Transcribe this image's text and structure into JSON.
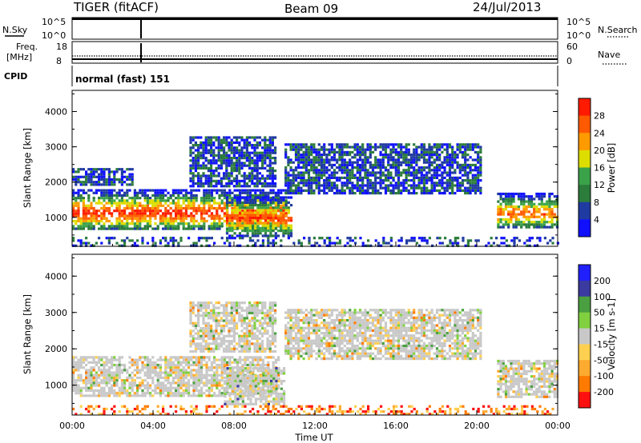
{
  "header": {
    "radar": "TIGER (fitACF)",
    "beam": "Beam 09",
    "date": "24/Jul/2013"
  },
  "noise_panel": {
    "left_label": "N.Sky",
    "right_label": "N.Search",
    "left_ticks": [
      "10^5",
      "10^0"
    ],
    "right_ticks": [
      "10^5",
      "10^0"
    ]
  },
  "freq_panel": {
    "left_label_line1": "Freq.",
    "left_label_line2": "[MHz]",
    "right_label": "Nave",
    "left_ticks": [
      "18",
      "8"
    ],
    "right_ticks": [
      "60",
      "0"
    ]
  },
  "cpid_panel": {
    "label": "CPID",
    "value": "normal (fast) 151"
  },
  "x_axis": {
    "title": "Time UT",
    "ticks": [
      "00:00",
      "04:00",
      "08:00",
      "12:00",
      "16:00",
      "20:00",
      "00:00"
    ]
  },
  "colors": {
    "power_scale": [
      "#1010ff",
      "#1f3aa0",
      "#2c7c3c",
      "#3aa34a",
      "#dddd00",
      "#ff9a00",
      "#ff5a00",
      "#ff1a00"
    ],
    "velocity_scale": [
      "#ff1010",
      "#ff7a00",
      "#ffaa30",
      "#ffd050",
      "#c8c8c8",
      "#80d040",
      "#4aa040",
      "#3a3aa0",
      "#2020ff"
    ],
    "ground_scatter": "#c8c8c8"
  },
  "chart_data": [
    {
      "type": "heatmap",
      "panel": "power",
      "ylabel": "Slant Range [km]",
      "yticks": [
        "1000",
        "2000",
        "3000",
        "4000"
      ],
      "ylim": [
        180,
        4600
      ],
      "xlim_hours": [
        0,
        24
      ],
      "colorbar": {
        "label": "Power [dB]",
        "ticks": [
          "4",
          "8",
          "12",
          "16",
          "20",
          "24",
          "28"
        ]
      },
      "echo_regions": [
        {
          "t0": 0.0,
          "t1": 10.6,
          "r0": 650,
          "r1": 1800,
          "peak_db": 28
        },
        {
          "t0": 0.0,
          "t1": 3.0,
          "r0": 1900,
          "r1": 2400,
          "peak_db": 10
        },
        {
          "t0": 5.8,
          "t1": 10.0,
          "r0": 1900,
          "r1": 3300,
          "peak_db": 12
        },
        {
          "t0": 7.6,
          "t1": 10.8,
          "r0": 500,
          "r1": 1600,
          "peak_db": 26
        },
        {
          "t0": 10.5,
          "t1": 20.2,
          "r0": 1700,
          "r1": 3100,
          "peak_db": 10
        },
        {
          "t0": 21.0,
          "t1": 24.0,
          "r0": 700,
          "r1": 1700,
          "peak_db": 24
        },
        {
          "t0": 0.0,
          "t1": 24.0,
          "r0": 180,
          "r1": 450,
          "peak_db": 6
        }
      ]
    },
    {
      "type": "heatmap",
      "panel": "velocity",
      "ylabel": "Slant Range [km]",
      "yticks": [
        "1000",
        "2000",
        "3000",
        "4000"
      ],
      "ylim": [
        180,
        4600
      ],
      "xlim_hours": [
        0,
        24
      ],
      "colorbar": {
        "label": "Velocity [m s-1]",
        "ticks": [
          "200",
          "100",
          "50",
          "15",
          "-15",
          "-50",
          "-100",
          "-200"
        ]
      },
      "echo_regions": [
        {
          "t0": 0.0,
          "t1": 10.2,
          "r0": 700,
          "r1": 1800,
          "mean_vel": -5
        },
        {
          "t0": 7.5,
          "t1": 10.5,
          "r0": 500,
          "r1": 1500,
          "mean_vel": 40
        },
        {
          "t0": 5.8,
          "t1": 10.0,
          "r0": 1900,
          "r1": 3300,
          "mean_vel": 10
        },
        {
          "t0": 10.5,
          "t1": 20.2,
          "r0": 1700,
          "r1": 3100,
          "mean_vel": -10
        },
        {
          "t0": 21.0,
          "t1": 24.0,
          "r0": 700,
          "r1": 1700,
          "mean_vel": 20
        },
        {
          "t0": 0.0,
          "t1": 24.0,
          "r0": 180,
          "r1": 450,
          "mean_vel": -60
        }
      ]
    }
  ]
}
